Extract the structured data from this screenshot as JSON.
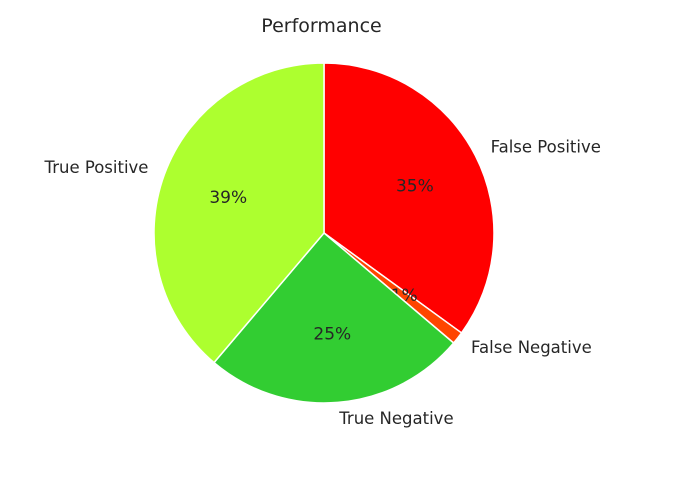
{
  "chart_data": {
    "type": "pie",
    "title": "Performance",
    "slices": [
      {
        "label": "False Positive",
        "value": 35,
        "pct_label": "35%",
        "color": "#ff0000"
      },
      {
        "label": "False Negative",
        "value": 1.2,
        "pct_label": "1%",
        "color": "#ff4500"
      },
      {
        "label": "True Negative",
        "value": 25,
        "pct_label": "25%",
        "color": "#32cd32"
      },
      {
        "label": "True Positive",
        "value": 38.8,
        "pct_label": "39%",
        "color": "#adff2f"
      }
    ],
    "start_angle": 90,
    "direction": "clockwise",
    "edge_color": "#ffffff"
  }
}
